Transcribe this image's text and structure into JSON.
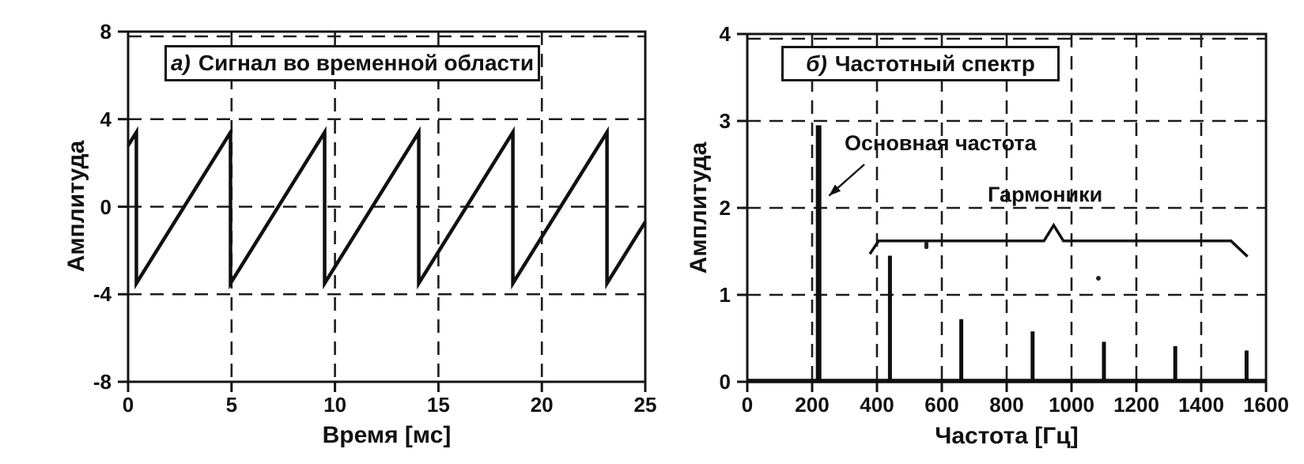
{
  "figure": {
    "background_color": "#ffffff",
    "ink_color": "#111111"
  },
  "chart_data": [
    {
      "id": "time-domain",
      "type": "line",
      "panel_label": "а)",
      "title": "Сигнал во временной области",
      "xlabel": "Время [мс]",
      "ylabel": "Амплитуда",
      "xlim": [
        0,
        25
      ],
      "ylim": [
        -8,
        8
      ],
      "xticks": [
        "0",
        "5",
        "10",
        "15",
        "20",
        "25"
      ],
      "xtick_values": [
        0,
        5,
        10,
        15,
        20,
        25
      ],
      "yticks": [
        "8",
        "4",
        "0",
        "-4",
        "-8"
      ],
      "ytick_values": [
        8,
        4,
        0,
        -4,
        -8
      ],
      "grid": "dashed",
      "waveform": {
        "shape": "sawtooth",
        "peak": 3.4,
        "trough": -3.5,
        "period_ms": 4.55,
        "drop_times_ms": [
          0.4,
          4.95,
          9.5,
          14.05,
          18.6,
          23.15
        ]
      }
    },
    {
      "id": "frequency-spectrum",
      "type": "bar",
      "panel_label": "б)",
      "title": "Частотный спектр",
      "xlabel": "Частота [Гц]",
      "ylabel": "Амплитуда",
      "xlim": [
        0,
        1600
      ],
      "ylim": [
        0,
        4
      ],
      "xticks": [
        "0",
        "200",
        "400",
        "600",
        "800",
        "1000",
        "1200",
        "1400",
        "1600"
      ],
      "xtick_values": [
        0,
        200,
        400,
        600,
        800,
        1000,
        1200,
        1400,
        1600
      ],
      "yticks": [
        "4",
        "3",
        "2",
        "1",
        "0"
      ],
      "ytick_values": [
        4,
        3,
        2,
        1,
        0
      ],
      "grid": "dashed",
      "bars": {
        "frequencies_hz": [
          220,
          440,
          660,
          880,
          1100,
          1320,
          1540
        ],
        "amplitudes": [
          2.95,
          1.45,
          0.72,
          0.58,
          0.46,
          0.41,
          0.36
        ]
      },
      "annotations": {
        "fundamental": {
          "label": "Основная частота",
          "arrow_from": [
            361,
            2.5
          ],
          "arrow_to": [
            252,
            2.14
          ]
        },
        "harmonics": {
          "label": "Гармоники",
          "brace": {
            "left_tip": [
              378,
              1.47
            ],
            "plateau_start": 405,
            "plateau_end": 1492,
            "plateau_y": 1.62,
            "caret_x": 945,
            "caret_tip_y": 1.8,
            "caret_half_width_hz": 30,
            "right_tip": [
              1543,
              1.44
            ]
          }
        }
      }
    }
  ]
}
